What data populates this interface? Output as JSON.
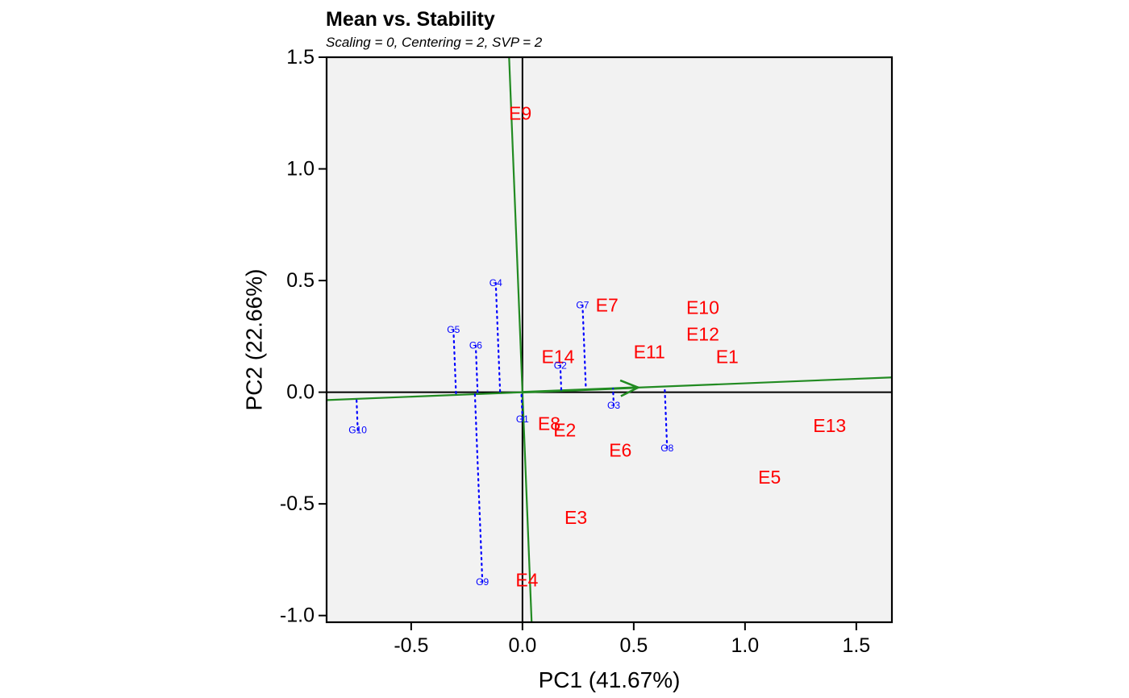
{
  "chart_data": {
    "type": "scatter",
    "title": "Mean vs. Stability",
    "subtitle": "Scaling = 0, Centering = 2, SVP = 2",
    "xlabel": "PC1 (41.67%)",
    "ylabel": "PC2 (22.66%)",
    "xlim": [
      -0.88,
      1.66
    ],
    "ylim": [
      -1.03,
      1.5
    ],
    "xticks": [
      -0.5,
      0.0,
      0.5,
      1.0,
      1.5
    ],
    "xtick_labels": [
      "-0.5",
      "0.0",
      "0.5",
      "1.0",
      "1.5"
    ],
    "yticks": [
      -1.0,
      -0.5,
      0.0,
      0.5,
      1.0,
      1.5
    ],
    "ytick_labels": [
      "-1.0",
      "-0.5",
      "0.0",
      "0.5",
      "1.0",
      "1.5"
    ],
    "grid": false,
    "colors": {
      "panel": "#f2f2f2",
      "environment": "#ff0000",
      "genotype": "#0000ff",
      "axis_line": "#228b22"
    },
    "average_environment_axis": {
      "slope": 0.04,
      "arrow_to": [
        0.52,
        0.021
      ]
    },
    "environments": [
      {
        "name": "E1",
        "x": 0.92,
        "y": 0.16
      },
      {
        "name": "E2",
        "x": 0.19,
        "y": -0.17
      },
      {
        "name": "E3",
        "x": 0.24,
        "y": -0.56
      },
      {
        "name": "E4",
        "x": 0.02,
        "y": -0.84
      },
      {
        "name": "E5",
        "x": 1.11,
        "y": -0.38
      },
      {
        "name": "E6",
        "x": 0.44,
        "y": -0.26
      },
      {
        "name": "E7",
        "x": 0.38,
        "y": 0.39
      },
      {
        "name": "E8",
        "x": 0.12,
        "y": -0.14
      },
      {
        "name": "E9",
        "x": -0.01,
        "y": 1.25
      },
      {
        "name": "E10",
        "x": 0.81,
        "y": 0.38
      },
      {
        "name": "E11",
        "x": 0.57,
        "y": 0.18
      },
      {
        "name": "E12",
        "x": 0.81,
        "y": 0.26
      },
      {
        "name": "E13",
        "x": 1.38,
        "y": -0.15
      },
      {
        "name": "E14",
        "x": 0.16,
        "y": 0.16
      }
    ],
    "genotypes": [
      {
        "name": "G1",
        "x": 0.0,
        "y": -0.12
      },
      {
        "name": "G2",
        "x": 0.17,
        "y": 0.12
      },
      {
        "name": "G3",
        "x": 0.41,
        "y": -0.06
      },
      {
        "name": "G4",
        "x": -0.12,
        "y": 0.49
      },
      {
        "name": "G5",
        "x": -0.31,
        "y": 0.28
      },
      {
        "name": "G6",
        "x": -0.21,
        "y": 0.21
      },
      {
        "name": "G7",
        "x": 0.27,
        "y": 0.39
      },
      {
        "name": "G8",
        "x": 0.65,
        "y": -0.25
      },
      {
        "name": "G9",
        "x": -0.18,
        "y": -0.85
      },
      {
        "name": "G10",
        "x": -0.74,
        "y": -0.17
      }
    ]
  }
}
